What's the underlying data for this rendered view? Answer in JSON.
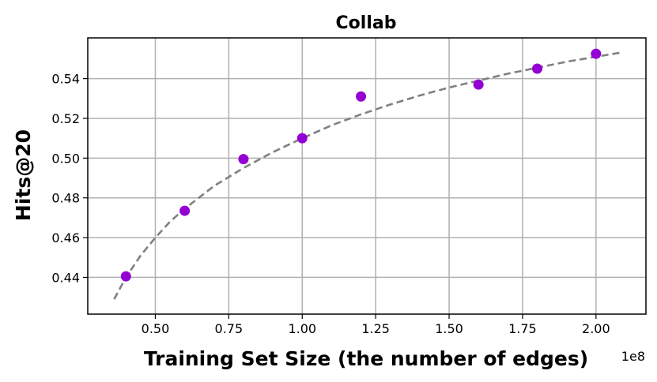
{
  "chart_data": {
    "type": "scatter",
    "title": "Collab",
    "xlabel": "Training Set Size (the number of edges)",
    "ylabel": "Hits@20",
    "x_offset_label": "1e8",
    "xlim": [
      0.27,
      2.17
    ],
    "ylim": [
      0.4215,
      0.5605
    ],
    "xticks": [
      0.5,
      0.75,
      1.0,
      1.25,
      1.5,
      1.75,
      2.0
    ],
    "xtick_labels": [
      "0.50",
      "0.75",
      "1.00",
      "1.25",
      "1.50",
      "1.75",
      "2.00"
    ],
    "yticks": [
      0.44,
      0.46,
      0.48,
      0.5,
      0.52,
      0.54
    ],
    "ytick_labels": [
      "0.44",
      "0.46",
      "0.48",
      "0.50",
      "0.52",
      "0.54"
    ],
    "grid": true,
    "series": [
      {
        "x": [
          0.4,
          0.6,
          0.8,
          1.0,
          1.2,
          1.6,
          1.8,
          2.0
        ],
        "y": [
          0.4405,
          0.4735,
          0.4995,
          0.51,
          0.531,
          0.537,
          0.545,
          0.5525
        ],
        "color": "#9400d3",
        "marker": "circle"
      }
    ],
    "trend_line": {
      "x": [
        0.36,
        0.4,
        0.45,
        0.5,
        0.55,
        0.6,
        0.7,
        0.8,
        0.9,
        1.0,
        1.1,
        1.2,
        1.3,
        1.4,
        1.5,
        1.6,
        1.7,
        1.8,
        1.9,
        2.0,
        2.08
      ],
      "y": [
        0.429,
        0.44,
        0.451,
        0.46,
        0.468,
        0.4745,
        0.486,
        0.495,
        0.503,
        0.51,
        0.5165,
        0.522,
        0.527,
        0.5315,
        0.5355,
        0.539,
        0.5425,
        0.5455,
        0.5485,
        0.551,
        0.553
      ],
      "color": "#808080",
      "style": "dashed"
    }
  }
}
